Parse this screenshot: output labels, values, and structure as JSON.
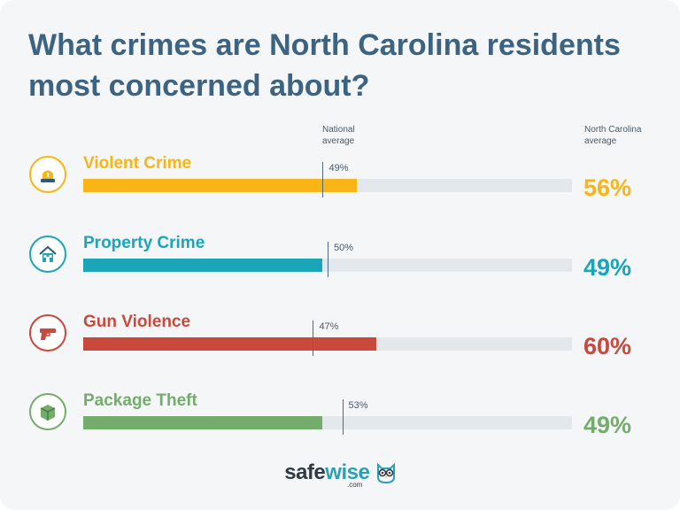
{
  "title": "What crimes are North Carolina residents most concerned about?",
  "headers": {
    "national": "National average",
    "state": "North Carolina average"
  },
  "logo": {
    "brand_part1": "safe",
    "brand_part2": "wise",
    "suffix": ".com"
  },
  "colors": {
    "title": "#3d6382",
    "track": "#e3e8ec",
    "national_marker": "#4c6a85"
  },
  "chart_data": {
    "type": "bar",
    "orientation": "horizontal",
    "scale_max": 100,
    "categories": [
      "Violent Crime",
      "Property Crime",
      "Gun Violence",
      "Package Theft"
    ],
    "series": [
      {
        "name": "North Carolina average",
        "values": [
          56,
          49,
          60,
          49
        ]
      },
      {
        "name": "National average",
        "values": [
          49,
          50,
          47,
          53
        ]
      }
    ],
    "state_labels": [
      "56%",
      "49%",
      "60%",
      "49%"
    ],
    "national_labels": [
      "49%",
      "50%",
      "47%",
      "53%"
    ],
    "row_colors": [
      "#f9b515",
      "#1aa5b9",
      "#c9493c",
      "#74ac6b"
    ],
    "icons": [
      "siren-icon",
      "house-icon",
      "gun-icon",
      "package-icon"
    ]
  }
}
